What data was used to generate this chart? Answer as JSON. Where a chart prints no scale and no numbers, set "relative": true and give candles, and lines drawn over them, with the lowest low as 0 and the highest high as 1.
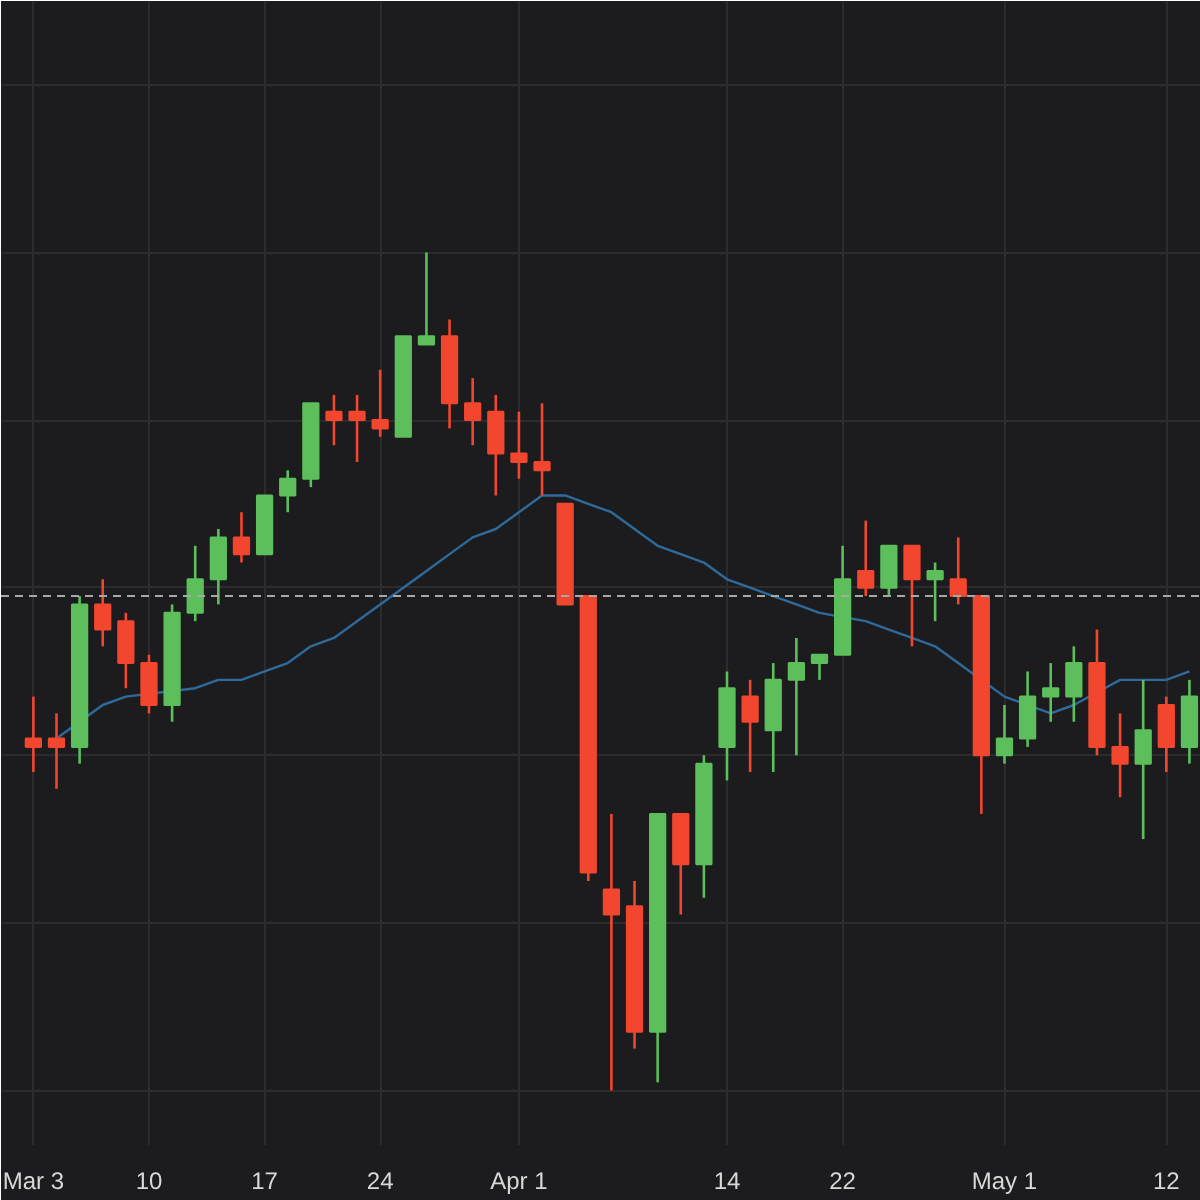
{
  "chart_data": {
    "type": "candlestick",
    "relative": true,
    "grid": true,
    "categories": [
      "Mar 3",
      null,
      null,
      null,
      null,
      "10",
      null,
      null,
      null,
      null,
      "17",
      null,
      null,
      null,
      null,
      "24",
      null,
      null,
      null,
      null,
      null,
      "Apr 1",
      null,
      null,
      null,
      null,
      null,
      null,
      null,
      null,
      "14",
      null,
      null,
      null,
      null,
      "22",
      null,
      null,
      null,
      null,
      null,
      null,
      "May 1",
      null,
      null,
      null,
      null,
      null,
      null,
      "12",
      null
    ],
    "ohlc": [
      [
        0.42,
        0.47,
        0.38,
        0.41
      ],
      [
        0.42,
        0.45,
        0.36,
        0.41
      ],
      [
        0.41,
        0.59,
        0.39,
        0.58
      ],
      [
        0.58,
        0.61,
        0.53,
        0.55
      ],
      [
        0.56,
        0.57,
        0.48,
        0.51
      ],
      [
        0.51,
        0.52,
        0.45,
        0.46
      ],
      [
        0.46,
        0.58,
        0.44,
        0.57
      ],
      [
        0.57,
        0.65,
        0.56,
        0.61
      ],
      [
        0.61,
        0.67,
        0.58,
        0.66
      ],
      [
        0.66,
        0.69,
        0.63,
        0.64
      ],
      [
        0.64,
        0.71,
        0.64,
        0.71
      ],
      [
        0.71,
        0.74,
        0.69,
        0.73
      ],
      [
        0.73,
        0.82,
        0.72,
        0.82
      ],
      [
        0.81,
        0.83,
        0.77,
        0.8
      ],
      [
        0.81,
        0.83,
        0.75,
        0.8
      ],
      [
        0.8,
        0.86,
        0.78,
        0.79
      ],
      [
        0.78,
        0.9,
        0.78,
        0.9
      ],
      [
        0.89,
        1.0,
        0.89,
        0.9
      ],
      [
        0.9,
        0.92,
        0.79,
        0.82
      ],
      [
        0.82,
        0.85,
        0.77,
        0.8
      ],
      [
        0.81,
        0.83,
        0.71,
        0.76
      ],
      [
        0.76,
        0.81,
        0.73,
        0.75
      ],
      [
        0.75,
        0.82,
        0.71,
        0.74
      ],
      [
        0.7,
        0.7,
        0.58,
        0.58
      ],
      [
        0.59,
        0.59,
        0.25,
        0.26
      ],
      [
        0.24,
        0.33,
        0.0,
        0.21
      ],
      [
        0.22,
        0.25,
        0.05,
        0.07
      ],
      [
        0.07,
        0.33,
        0.01,
        0.33
      ],
      [
        0.33,
        0.33,
        0.21,
        0.27
      ],
      [
        0.27,
        0.4,
        0.23,
        0.39
      ],
      [
        0.41,
        0.5,
        0.37,
        0.48
      ],
      [
        0.47,
        0.49,
        0.38,
        0.44
      ],
      [
        0.43,
        0.51,
        0.38,
        0.49
      ],
      [
        0.49,
        0.54,
        0.4,
        0.51
      ],
      [
        0.51,
        0.52,
        0.49,
        0.52
      ],
      [
        0.52,
        0.65,
        0.52,
        0.61
      ],
      [
        0.62,
        0.68,
        0.59,
        0.6
      ],
      [
        0.6,
        0.65,
        0.59,
        0.65
      ],
      [
        0.65,
        0.65,
        0.53,
        0.61
      ],
      [
        0.61,
        0.63,
        0.56,
        0.62
      ],
      [
        0.61,
        0.66,
        0.58,
        0.59
      ],
      [
        0.59,
        0.59,
        0.33,
        0.4
      ],
      [
        0.4,
        0.46,
        0.39,
        0.42
      ],
      [
        0.42,
        0.5,
        0.41,
        0.47
      ],
      [
        0.47,
        0.51,
        0.44,
        0.48
      ],
      [
        0.47,
        0.53,
        0.44,
        0.51
      ],
      [
        0.51,
        0.55,
        0.4,
        0.41
      ],
      [
        0.41,
        0.45,
        0.35,
        0.39
      ],
      [
        0.39,
        0.49,
        0.3,
        0.43
      ],
      [
        0.46,
        0.47,
        0.38,
        0.41
      ],
      [
        0.41,
        0.49,
        0.39,
        0.47
      ]
    ],
    "series": [
      {
        "type": "line",
        "color": "#2e6a9c",
        "values": [
          null,
          0.42,
          null,
          0.46,
          0.47,
          null,
          null,
          0.48,
          0.49,
          0.49,
          0.5,
          0.51,
          0.53,
          0.54,
          0.56,
          0.58,
          0.6,
          0.62,
          0.64,
          0.66,
          0.67,
          0.69,
          0.71,
          0.71,
          0.7,
          0.69,
          0.67,
          0.65,
          0.64,
          0.63,
          0.61,
          0.6,
          0.59,
          0.58,
          0.57,
          null,
          0.56,
          0.55,
          0.54,
          0.53,
          0.51,
          null,
          0.47,
          null,
          0.45,
          0.46,
          null,
          0.49,
          0.49,
          0.49,
          0.5
        ]
      }
    ],
    "ref_lines": [
      {
        "axis": "y",
        "value": 0.59,
        "line_style": "dashed",
        "color": "#a8a8a8"
      }
    ]
  }
}
